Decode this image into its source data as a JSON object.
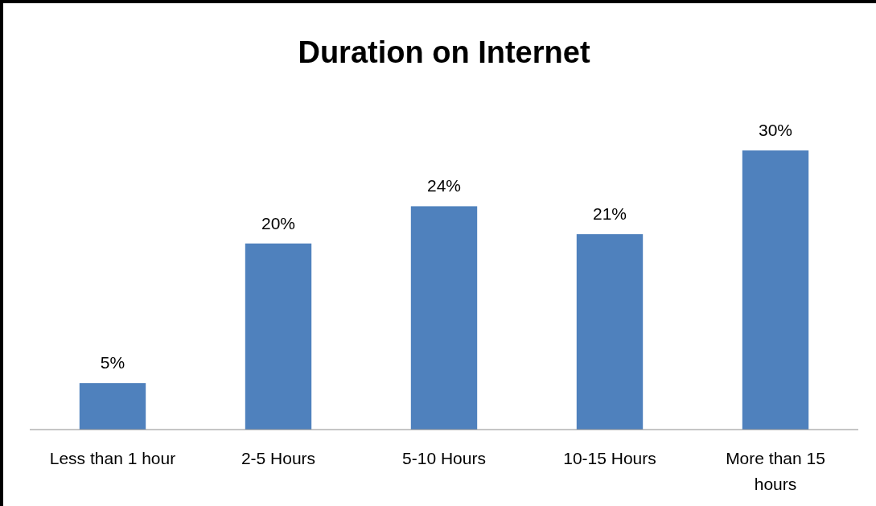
{
  "chart_data": {
    "type": "bar",
    "title": "Duration on Internet",
    "categories": [
      "Less than 1 hour",
      "2-5 Hours",
      "5-10 Hours",
      "10-15 Hours",
      "More than 15 hours"
    ],
    "values": [
      5,
      20,
      24,
      21,
      30
    ],
    "color": "#4f81bd",
    "data_labels": true,
    "value_labels": [
      "5%",
      "20%",
      "24%",
      "21%",
      "30%"
    ]
  }
}
